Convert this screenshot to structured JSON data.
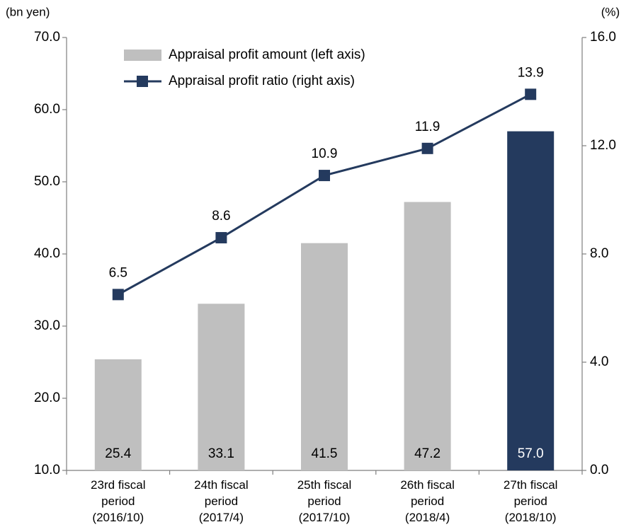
{
  "chart_data": {
    "type": "bar",
    "ylabel": "(bn yen)",
    "y2label": "(%)",
    "categories": [
      "23rd fiscal\nperiod\n(2016/10)",
      "24th fiscal\nperiod\n(2017/4)",
      "25th fiscal\nperiod\n(2017/10)",
      "26th fiscal\nperiod\n(2018/4)",
      "27th fiscal\nperiod\n(2018/10)"
    ],
    "series": [
      {
        "name": "Appraisal profit amount (left axis)",
        "type": "bar",
        "color": "#bfbfbf",
        "colors": [
          "#bfbfbf",
          "#bfbfbf",
          "#bfbfbf",
          "#bfbfbf",
          "#243a5e"
        ],
        "values": [
          25.4,
          33.1,
          41.5,
          47.2,
          57.0
        ],
        "value_labels": [
          "25.4",
          "33.1",
          "41.5",
          "47.2",
          "57.0"
        ]
      },
      {
        "name": "Appraisal profit ratio (right axis)",
        "type": "line",
        "axis": "y2",
        "color": "#243a5e",
        "values": [
          6.5,
          8.6,
          10.9,
          11.9,
          13.9
        ]
      }
    ],
    "ylim": [
      10,
      70
    ],
    "yticks": [
      {
        "value": 10,
        "label": "10.0"
      },
      {
        "value": 20,
        "label": "20.0"
      },
      {
        "value": 30,
        "label": "30.0"
      },
      {
        "value": 40,
        "label": "40.0"
      },
      {
        "value": 50,
        "label": "50.0"
      },
      {
        "value": 60,
        "label": "60.0"
      },
      {
        "value": 70,
        "label": "70.0"
      }
    ],
    "y2lim": [
      0,
      16
    ],
    "y2ticks": [
      {
        "value": 0,
        "label": "0.0"
      },
      {
        "value": 4,
        "label": "4.0"
      },
      {
        "value": 8,
        "label": "8.0"
      },
      {
        "value": 12,
        "label": "12.0"
      },
      {
        "value": 16,
        "label": "16.0"
      }
    ],
    "grid": false,
    "legend": "upper left"
  }
}
